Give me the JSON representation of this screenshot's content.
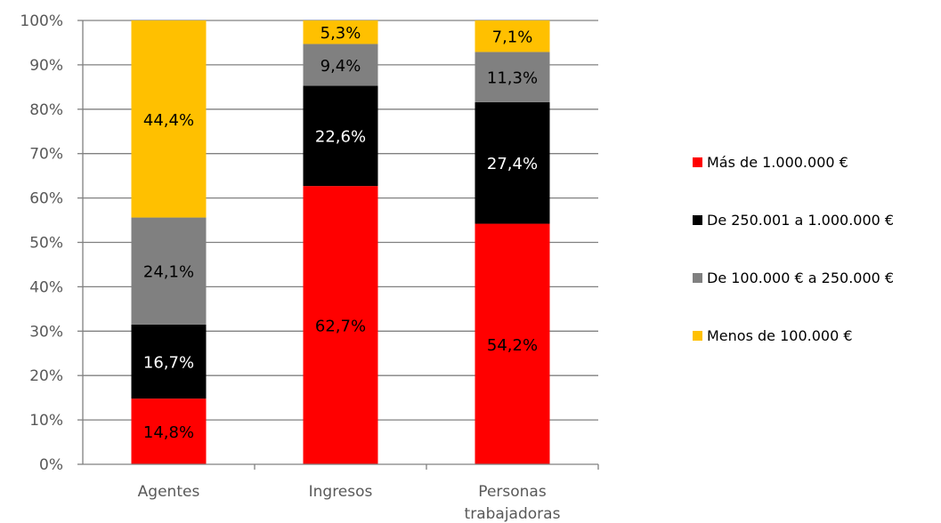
{
  "chart_data": {
    "type": "bar",
    "stacked": true,
    "categories": [
      "Agentes",
      "Ingresos",
      "Personas trabajadoras"
    ],
    "category_lines": [
      [
        "Agentes"
      ],
      [
        "Ingresos"
      ],
      [
        "Personas",
        "trabajadoras"
      ]
    ],
    "series": [
      {
        "name": "Más de 1.000.000 €",
        "color": "#FF0000",
        "label_color": "#000000",
        "values": [
          14.8,
          62.7,
          54.2
        ],
        "labels": [
          "14,8%",
          "62,7%",
          "54,2%"
        ]
      },
      {
        "name": "De 250.001 a 1.000.000 €",
        "color": "#000000",
        "label_color": "#FFFFFF",
        "values": [
          16.7,
          22.6,
          27.4
        ],
        "labels": [
          "16,7%",
          "22,6%",
          "27,4%"
        ]
      },
      {
        "name": "De 100.000 € a 250.000 €",
        "color": "#808080",
        "label_color": "#000000",
        "values": [
          24.1,
          9.4,
          11.3
        ],
        "labels": [
          "24,1%",
          "9,4%",
          "11,3%"
        ]
      },
      {
        "name": "Menos de 100.000 €",
        "color": "#FFC000",
        "label_color": "#000000",
        "values": [
          44.4,
          5.3,
          7.1
        ],
        "labels": [
          "44,4%",
          "5,3%",
          "7,1%"
        ]
      }
    ],
    "yticks": [
      "0%",
      "10%",
      "20%",
      "30%",
      "40%",
      "50%",
      "60%",
      "70%",
      "80%",
      "90%",
      "100%"
    ],
    "ylim": [
      0,
      100
    ],
    "grid": true,
    "legend_position": "right",
    "legend_order": [
      "Más de 1.000.000 €",
      "De 250.001 a 1.000.000 €",
      "De 100.000 € a 250.000 €",
      "Menos de 100.000 €"
    ],
    "colors": {
      "gridline": "#808080",
      "axis": "#808080",
      "tick_text": "#595959"
    }
  }
}
